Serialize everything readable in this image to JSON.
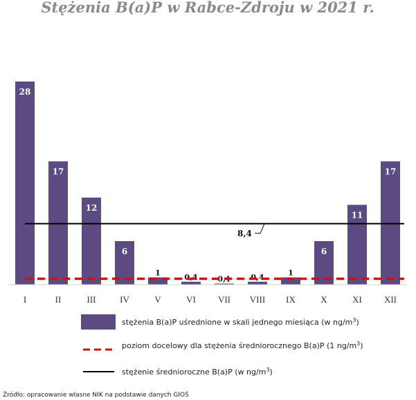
{
  "chart_data": {
    "type": "bar",
    "title": "Stężenia B(a)P w Rabce-Zdroju w 2021 r.",
    "categories": [
      "I",
      "II",
      "III",
      "IV",
      "V",
      "VI",
      "VII",
      "VIII",
      "IX",
      "X",
      "XI",
      "XII"
    ],
    "values": [
      28,
      17,
      12,
      6,
      1,
      0.4,
      0.1,
      0.4,
      1,
      6,
      11,
      17
    ],
    "value_labels": [
      "28",
      "17",
      "12",
      "6",
      "1",
      "0,4",
      "0,1",
      "0,4",
      "1",
      "6",
      "11",
      "17"
    ],
    "ylim": [
      0,
      28
    ],
    "bar_color": "#5c4a82",
    "reference_lines": {
      "target_level": {
        "value": 1,
        "style": "dashed",
        "color": "#cc1111"
      },
      "annual_mean": {
        "value": 8.4,
        "label": "8,4",
        "style": "solid",
        "color": "#000000"
      }
    },
    "legend": {
      "placement": "bottom",
      "entries": [
        {
          "text_main": "stężenia B(a)P uśrednione w skali jednego miesiąca (w ng/m",
          "text_sup": "3",
          "text_end": ")",
          "type": "bar"
        },
        {
          "text_main": "poziom docelowy dla stężenia średniorocznego B(a)P (1 ng/m",
          "text_sup": "3",
          "text_end": ")",
          "type": "dashed"
        },
        {
          "text_main": "stężenie średnioroczne B(a)P (w ng/m",
          "text_sup": "3",
          "text_end": ")",
          "type": "line"
        }
      ]
    },
    "grid": false
  },
  "source": "Źródło: opracowanie własne NIK na podstawie danych GIOŚ"
}
